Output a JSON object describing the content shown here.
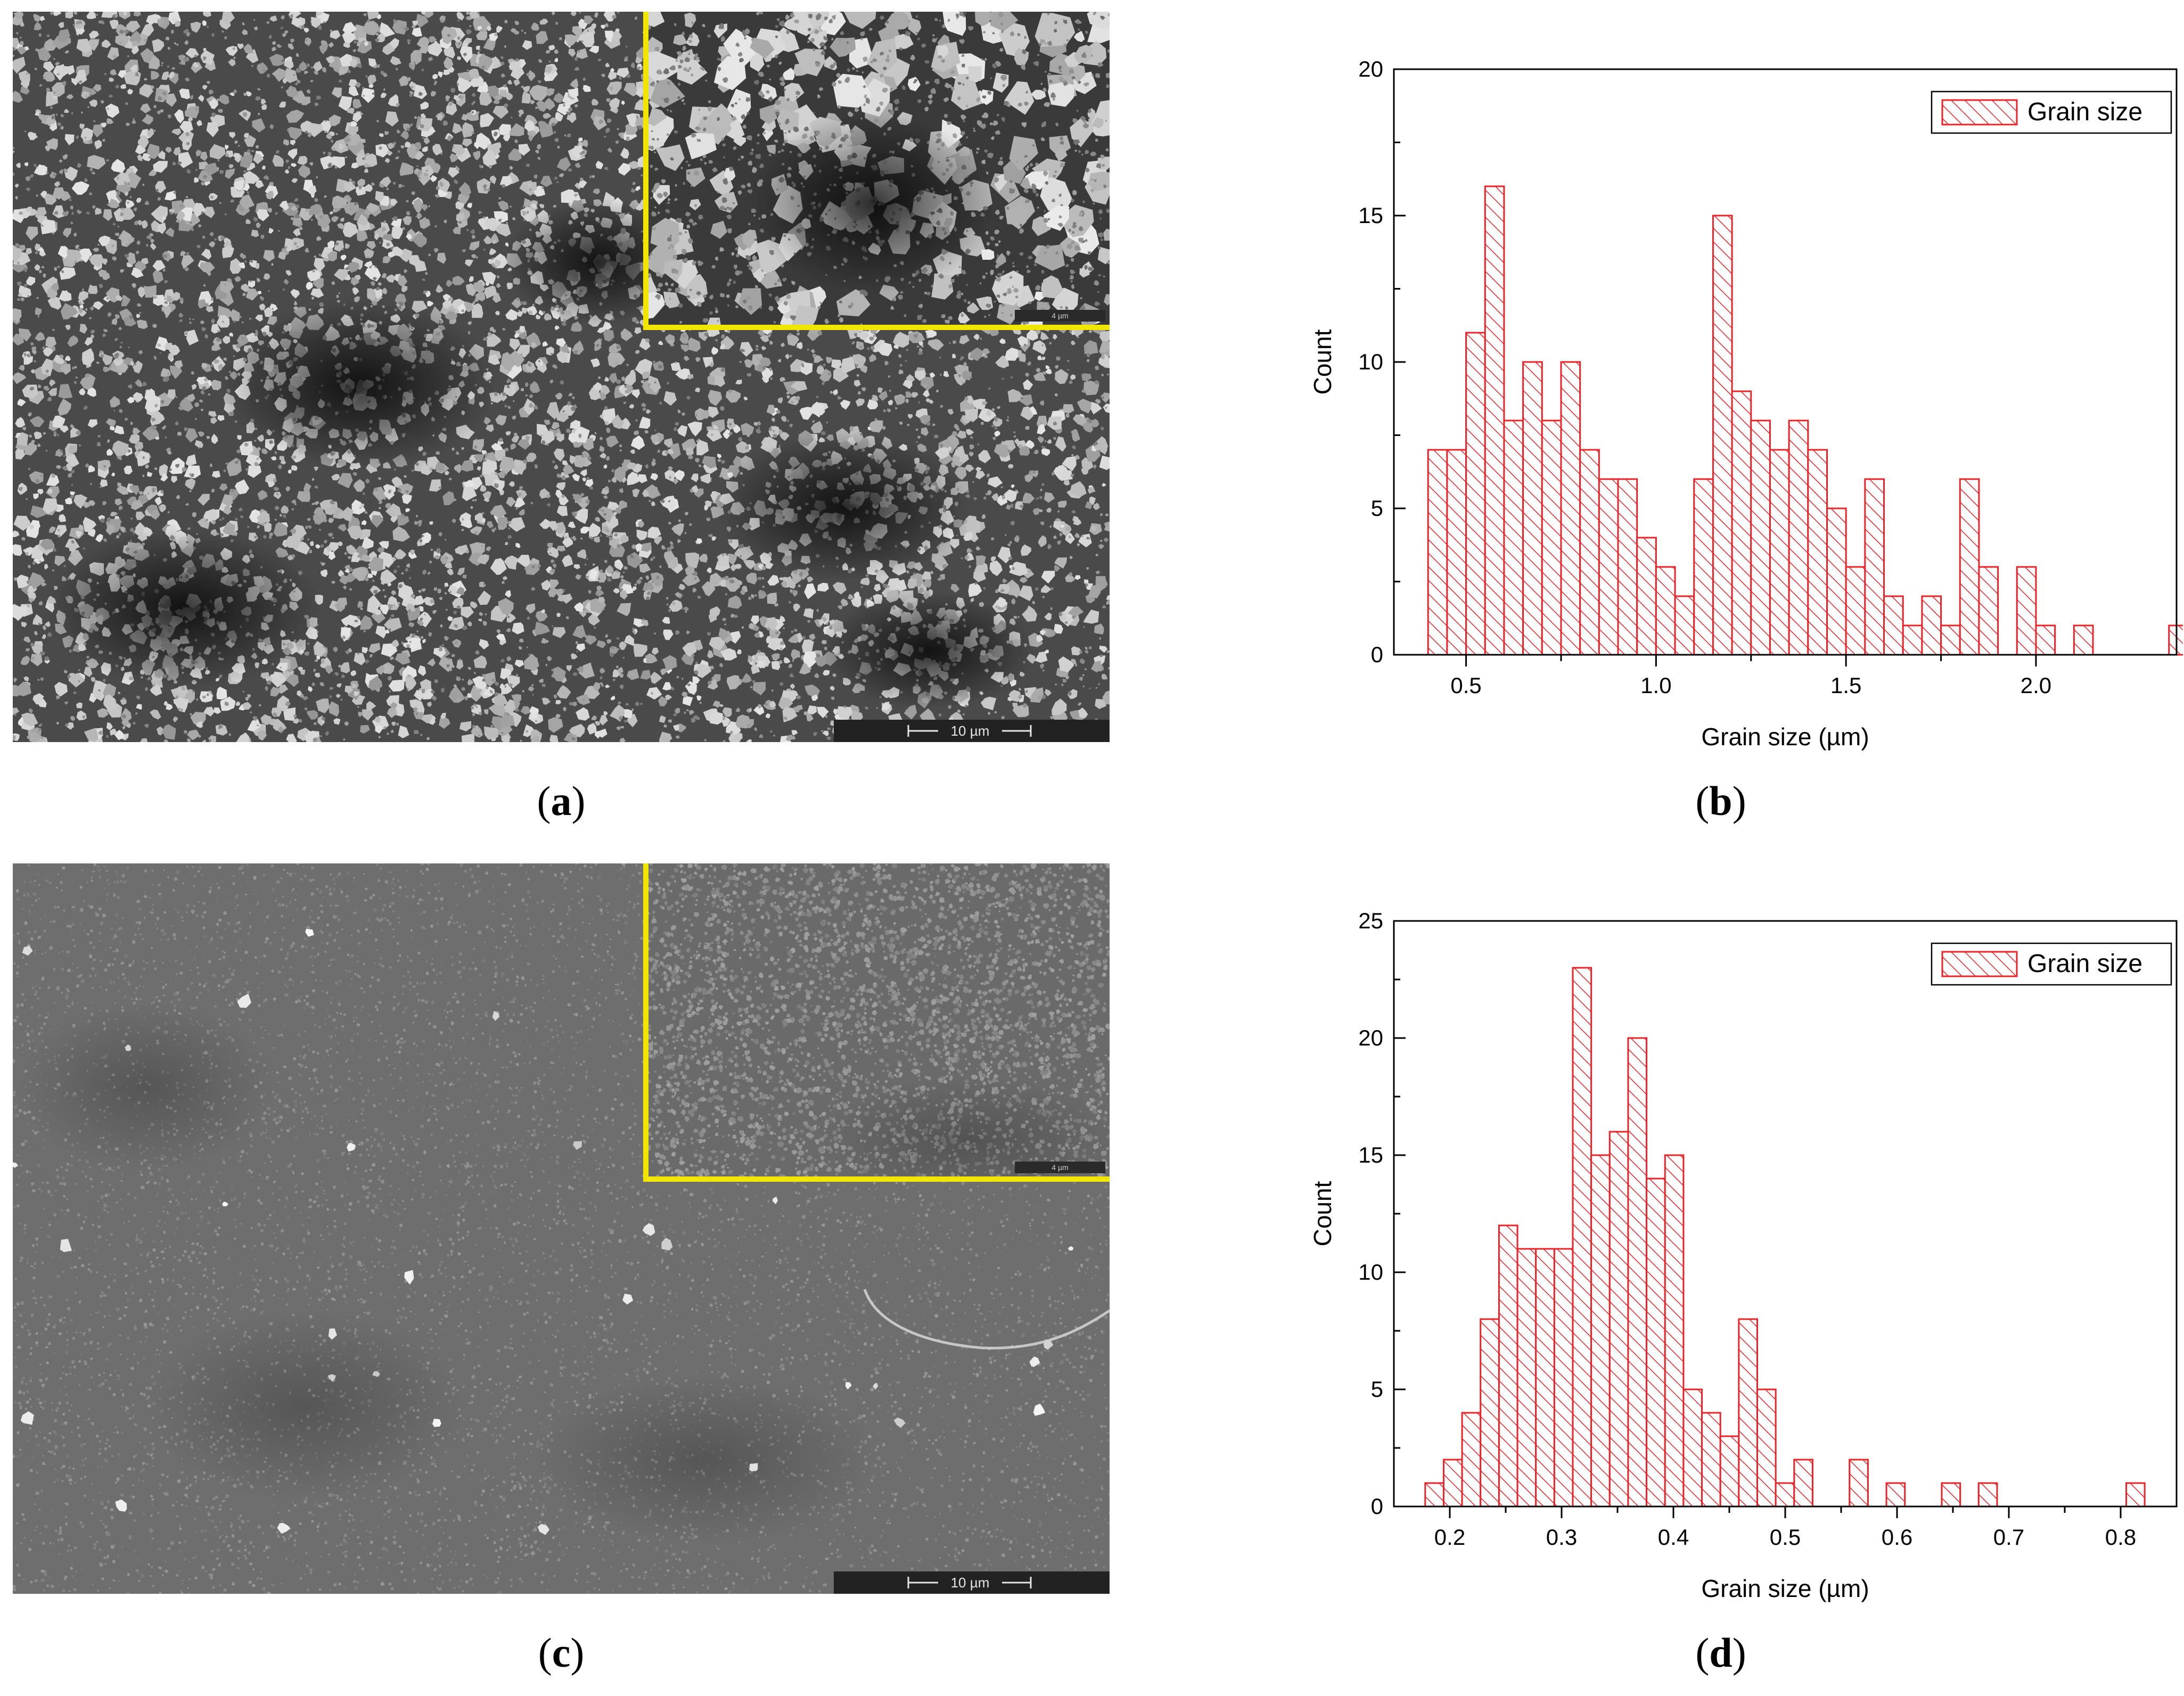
{
  "panels": {
    "a": {
      "letter": "a",
      "sem_scale_label": "10 µm",
      "inset_scale_label": "4 µm"
    },
    "b": {
      "letter": "b"
    },
    "c": {
      "letter": "c",
      "sem_scale_label": "10 µm",
      "inset_scale_label": "4 µm"
    },
    "d": {
      "letter": "d"
    }
  },
  "colors": {
    "bar": "#e8242a",
    "inset_frame": "#f2e600"
  },
  "chart_data": [
    {
      "id": "b",
      "type": "bar",
      "xlabel": "Grain size (µm)",
      "ylabel": "Count",
      "legend": {
        "label": "Grain size",
        "position": "top-right"
      },
      "xlim": [
        0.31,
        2.37
      ],
      "ylim": [
        0,
        20
      ],
      "xticks": [
        "0.5",
        "1.0",
        "1.5",
        "2.0"
      ],
      "xtick_values": [
        0.5,
        1.0,
        1.5,
        2.0
      ],
      "yticks": [
        "0",
        "5",
        "10",
        "15",
        "20"
      ],
      "ytick_values": [
        0,
        5,
        10,
        15,
        20
      ],
      "bin_start": 0.4,
      "bin_width": 0.05,
      "values": [
        7,
        7,
        11,
        16,
        8,
        10,
        8,
        10,
        7,
        6,
        6,
        4,
        3,
        2,
        6,
        15,
        9,
        8,
        7,
        8,
        7,
        5,
        3,
        6,
        2,
        1,
        2,
        1,
        6,
        3,
        0,
        3,
        1,
        0,
        1,
        0,
        0,
        0,
        0,
        1
      ]
    },
    {
      "id": "d",
      "type": "bar",
      "xlabel": "Grain size (µm)",
      "ylabel": "Count",
      "legend": {
        "label": "Grain size",
        "position": "top-right"
      },
      "xlim": [
        0.15,
        0.85
      ],
      "ylim": [
        0,
        25
      ],
      "xticks": [
        "0.2",
        "0.3",
        "0.4",
        "0.5",
        "0.6",
        "0.7",
        "0.8"
      ],
      "xtick_values": [
        0.2,
        0.3,
        0.4,
        0.5,
        0.6,
        0.7,
        0.8
      ],
      "yticks": [
        "0",
        "5",
        "10",
        "15",
        "20",
        "25"
      ],
      "ytick_values": [
        0,
        5,
        10,
        15,
        20,
        25
      ],
      "bin_start": 0.178,
      "bin_width": 0.0165,
      "values": [
        1,
        2,
        4,
        8,
        12,
        11,
        11,
        11,
        23,
        15,
        16,
        20,
        14,
        15,
        5,
        4,
        3,
        8,
        5,
        1,
        2,
        0,
        0,
        2,
        0,
        1,
        0,
        0,
        1,
        0,
        1,
        0,
        0,
        0,
        0,
        0,
        0,
        0,
        1
      ]
    }
  ]
}
